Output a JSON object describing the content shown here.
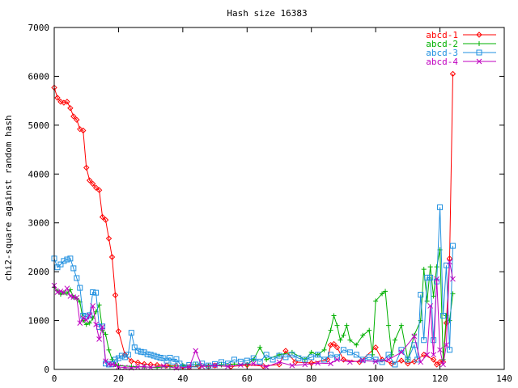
{
  "chart_data": {
    "type": "line",
    "title": "Hash size 16383",
    "xlabel": "",
    "ylabel": "chi2-square against random hash",
    "xlim": [
      0,
      140
    ],
    "ylim": [
      0,
      7000
    ],
    "xticks": [
      0,
      20,
      40,
      60,
      80,
      100,
      120,
      140
    ],
    "yticks": [
      0,
      1000,
      2000,
      3000,
      4000,
      5000,
      6000,
      7000
    ],
    "grid": false,
    "legend_position": "top-right",
    "series": [
      {
        "name": "abcd-1",
        "color": "#ff0000",
        "marker": "diamond",
        "x": [
          0,
          1,
          2,
          3,
          4,
          5,
          6,
          7,
          8,
          9,
          10,
          11,
          12,
          13,
          14,
          15,
          16,
          17,
          18,
          19,
          20,
          22,
          24,
          26,
          28,
          30,
          32,
          35,
          38,
          40,
          42,
          45,
          48,
          50,
          55,
          60,
          65,
          70,
          72,
          75,
          80,
          85,
          86,
          87,
          88,
          90,
          95,
          100,
          102,
          105,
          108,
          110,
          112,
          115,
          118,
          119,
          120,
          121,
          122,
          123,
          124
        ],
        "y": [
          5770,
          5560,
          5480,
          5460,
          5480,
          5350,
          5180,
          5110,
          4920,
          4890,
          4130,
          3870,
          3800,
          3720,
          3670,
          3120,
          3060,
          2680,
          2300,
          1520,
          780,
          300,
          170,
          140,
          110,
          100,
          90,
          80,
          70,
          60,
          50,
          70,
          60,
          80,
          60,
          90,
          70,
          100,
          380,
          150,
          130,
          200,
          500,
          520,
          450,
          200,
          150,
          450,
          200,
          120,
          180,
          120,
          160,
          300,
          200,
          100,
          150,
          150,
          950,
          2270,
          6050
        ]
      },
      {
        "name": "abcd-2",
        "color": "#00b000",
        "marker": "plus",
        "x": [
          0,
          1,
          2,
          3,
          4,
          5,
          6,
          7,
          8,
          9,
          10,
          11,
          12,
          13,
          14,
          15,
          16,
          17,
          18,
          19,
          20,
          24,
          28,
          32,
          36,
          40,
          44,
          48,
          52,
          56,
          60,
          62,
          64,
          66,
          70,
          74,
          78,
          80,
          82,
          84,
          86,
          87,
          88,
          89,
          90,
          91,
          92,
          94,
          96,
          98,
          99,
          100,
          102,
          103,
          104,
          105,
          106,
          108,
          110,
          112,
          114,
          115,
          116,
          117,
          118,
          119,
          120,
          121,
          122,
          123,
          124
        ],
        "y": [
          1680,
          1610,
          1540,
          1570,
          1560,
          1630,
          1480,
          1450,
          1380,
          1000,
          920,
          950,
          1050,
          1180,
          1320,
          800,
          720,
          400,
          200,
          100,
          80,
          60,
          50,
          40,
          60,
          80,
          100,
          70,
          90,
          110,
          100,
          200,
          450,
          200,
          300,
          350,
          200,
          350,
          300,
          400,
          800,
          1100,
          900,
          600,
          700,
          900,
          600,
          500,
          700,
          800,
          300,
          1400,
          1550,
          1600,
          900,
          300,
          600,
          900,
          200,
          700,
          1000,
          2050,
          1400,
          2100,
          1500,
          2100,
          2450,
          200,
          1100,
          1000,
          1550
        ]
      },
      {
        "name": "abcd-3",
        "color": "#2090e0",
        "marker": "square",
        "x": [
          0,
          1,
          2,
          3,
          4,
          5,
          6,
          7,
          8,
          9,
          10,
          11,
          12,
          13,
          14,
          15,
          16,
          17,
          18,
          19,
          20,
          21,
          22,
          23,
          24,
          25,
          26,
          27,
          28,
          29,
          30,
          31,
          32,
          33,
          34,
          35,
          36,
          37,
          38,
          39,
          40,
          42,
          44,
          46,
          48,
          50,
          52,
          54,
          56,
          58,
          60,
          62,
          64,
          66,
          68,
          70,
          72,
          74,
          76,
          78,
          80,
          82,
          84,
          86,
          88,
          90,
          92,
          94,
          96,
          98,
          100,
          102,
          104,
          106,
          108,
          110,
          112,
          113,
          114,
          115,
          116,
          117,
          118,
          119,
          120,
          121,
          122,
          123,
          124
        ],
        "y": [
          2270,
          2090,
          2150,
          2220,
          2250,
          2270,
          2070,
          1870,
          1670,
          1100,
          1080,
          1110,
          1580,
          1570,
          870,
          880,
          120,
          100,
          110,
          200,
          230,
          280,
          250,
          300,
          750,
          450,
          380,
          360,
          350,
          310,
          300,
          280,
          260,
          240,
          230,
          180,
          240,
          160,
          210,
          120,
          50,
          90,
          100,
          120,
          80,
          110,
          150,
          120,
          200,
          160,
          180,
          230,
          160,
          300,
          200,
          280,
          250,
          300,
          230,
          200,
          250,
          300,
          200,
          300,
          250,
          400,
          350,
          300,
          200,
          250,
          200,
          150,
          300,
          100,
          400,
          200,
          500,
          200,
          1530,
          600,
          1880,
          1880,
          600,
          1800,
          3320,
          1100,
          2130,
          400,
          2530
        ]
      },
      {
        "name": "abcd-4",
        "color": "#c000c0",
        "marker": "x",
        "x": [
          0,
          1,
          2,
          3,
          4,
          5,
          6,
          7,
          8,
          9,
          10,
          11,
          12,
          13,
          14,
          15,
          16,
          17,
          18,
          19,
          20,
          22,
          24,
          26,
          28,
          30,
          34,
          38,
          42,
          44,
          46,
          50,
          54,
          58,
          62,
          66,
          70,
          74,
          78,
          82,
          86,
          88,
          92,
          96,
          100,
          104,
          108,
          112,
          114,
          116,
          117,
          118,
          119,
          120,
          121,
          122,
          123,
          124
        ],
        "y": [
          1720,
          1580,
          1600,
          1570,
          1660,
          1500,
          1480,
          1470,
          950,
          1050,
          1010,
          1100,
          1300,
          920,
          620,
          870,
          170,
          110,
          100,
          90,
          50,
          40,
          30,
          50,
          60,
          40,
          70,
          30,
          50,
          380,
          60,
          80,
          60,
          90,
          120,
          50,
          150,
          80,
          100,
          130,
          120,
          200,
          150,
          180,
          160,
          200,
          350,
          680,
          150,
          300,
          1300,
          300,
          1850,
          400,
          100,
          500,
          2200,
          1850
        ]
      }
    ]
  }
}
